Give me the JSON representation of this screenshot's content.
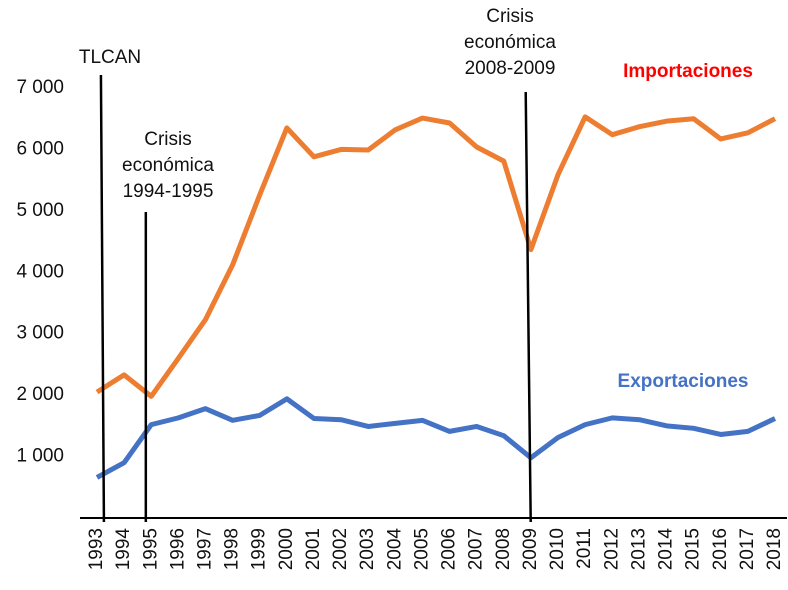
{
  "chart_data": {
    "type": "line",
    "x": [
      1993,
      1994,
      1995,
      1996,
      1997,
      1998,
      1999,
      2000,
      2001,
      2002,
      2003,
      2004,
      2005,
      2006,
      2007,
      2008,
      2009,
      2010,
      2011,
      2012,
      2013,
      2014,
      2015,
      2016,
      2017,
      2018
    ],
    "xlim": [
      1993,
      2018
    ],
    "xticks": [
      1993,
      1994,
      1995,
      1996,
      1997,
      1998,
      1999,
      2000,
      2001,
      2002,
      2003,
      2004,
      2005,
      2006,
      2007,
      2008,
      2009,
      2010,
      2011,
      2012,
      2013,
      2014,
      2015,
      2016,
      2017,
      2018
    ],
    "ylim": [
      0,
      7000
    ],
    "yticks": [
      {
        "value": 1000,
        "label": "1 000"
      },
      {
        "value": 2000,
        "label": "2 000"
      },
      {
        "value": 3000,
        "label": "3 000"
      },
      {
        "value": 4000,
        "label": "4 000"
      },
      {
        "value": 5000,
        "label": "5 000"
      },
      {
        "value": 6000,
        "label": "6 000"
      },
      {
        "value": 7000,
        "label": "7 000"
      }
    ],
    "series": [
      {
        "name": "Importaciones",
        "color": "#ed7d31",
        "label_color": "#ff0000",
        "values": [
          2050,
          2330,
          1980,
          2600,
          3230,
          4120,
          5260,
          6350,
          5880,
          6000,
          5990,
          6320,
          6510,
          6430,
          6040,
          5810,
          4370,
          5590,
          6530,
          6240,
          6370,
          6460,
          6500,
          6170,
          6270,
          6500
        ]
      },
      {
        "name": "Exportaciones",
        "color": "#4472c4",
        "label_color": "#4472c4",
        "values": [
          660,
          900,
          1520,
          1630,
          1780,
          1590,
          1670,
          1940,
          1620,
          1600,
          1490,
          1540,
          1590,
          1410,
          1490,
          1340,
          980,
          1310,
          1520,
          1630,
          1600,
          1500,
          1460,
          1360,
          1410,
          1620
        ]
      }
    ],
    "annotations": [
      {
        "text": [
          "TLCAN"
        ],
        "x": 1993.2
      },
      {
        "text": [
          "Crisis",
          "económica",
          "1994-1995"
        ],
        "x": 1994.8
      },
      {
        "text": [
          "Crisis",
          "económica",
          "2008-2009"
        ],
        "x": 2008.9
      }
    ]
  }
}
